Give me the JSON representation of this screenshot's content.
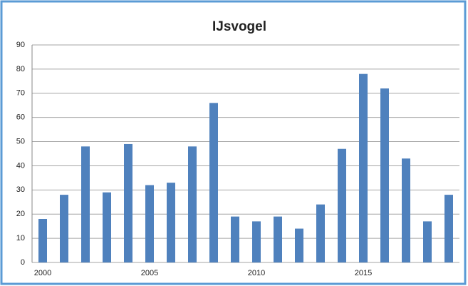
{
  "chart_data": {
    "type": "bar",
    "title": "IJsvogel",
    "categories": [
      "2000",
      null,
      null,
      null,
      null,
      "2005",
      null,
      null,
      null,
      null,
      "2010",
      null,
      null,
      null,
      null,
      "2015",
      null,
      null,
      null,
      null
    ],
    "values": [
      18,
      28,
      48,
      29,
      49,
      32,
      33,
      48,
      66,
      19,
      17,
      19,
      14,
      24,
      47,
      78,
      72,
      43,
      17,
      28
    ],
    "color": "#4f81bd",
    "ylim": [
      0,
      90
    ],
    "yticks": [
      0,
      10,
      20,
      30,
      40,
      50,
      60,
      70,
      80,
      90
    ],
    "grid": true
  }
}
